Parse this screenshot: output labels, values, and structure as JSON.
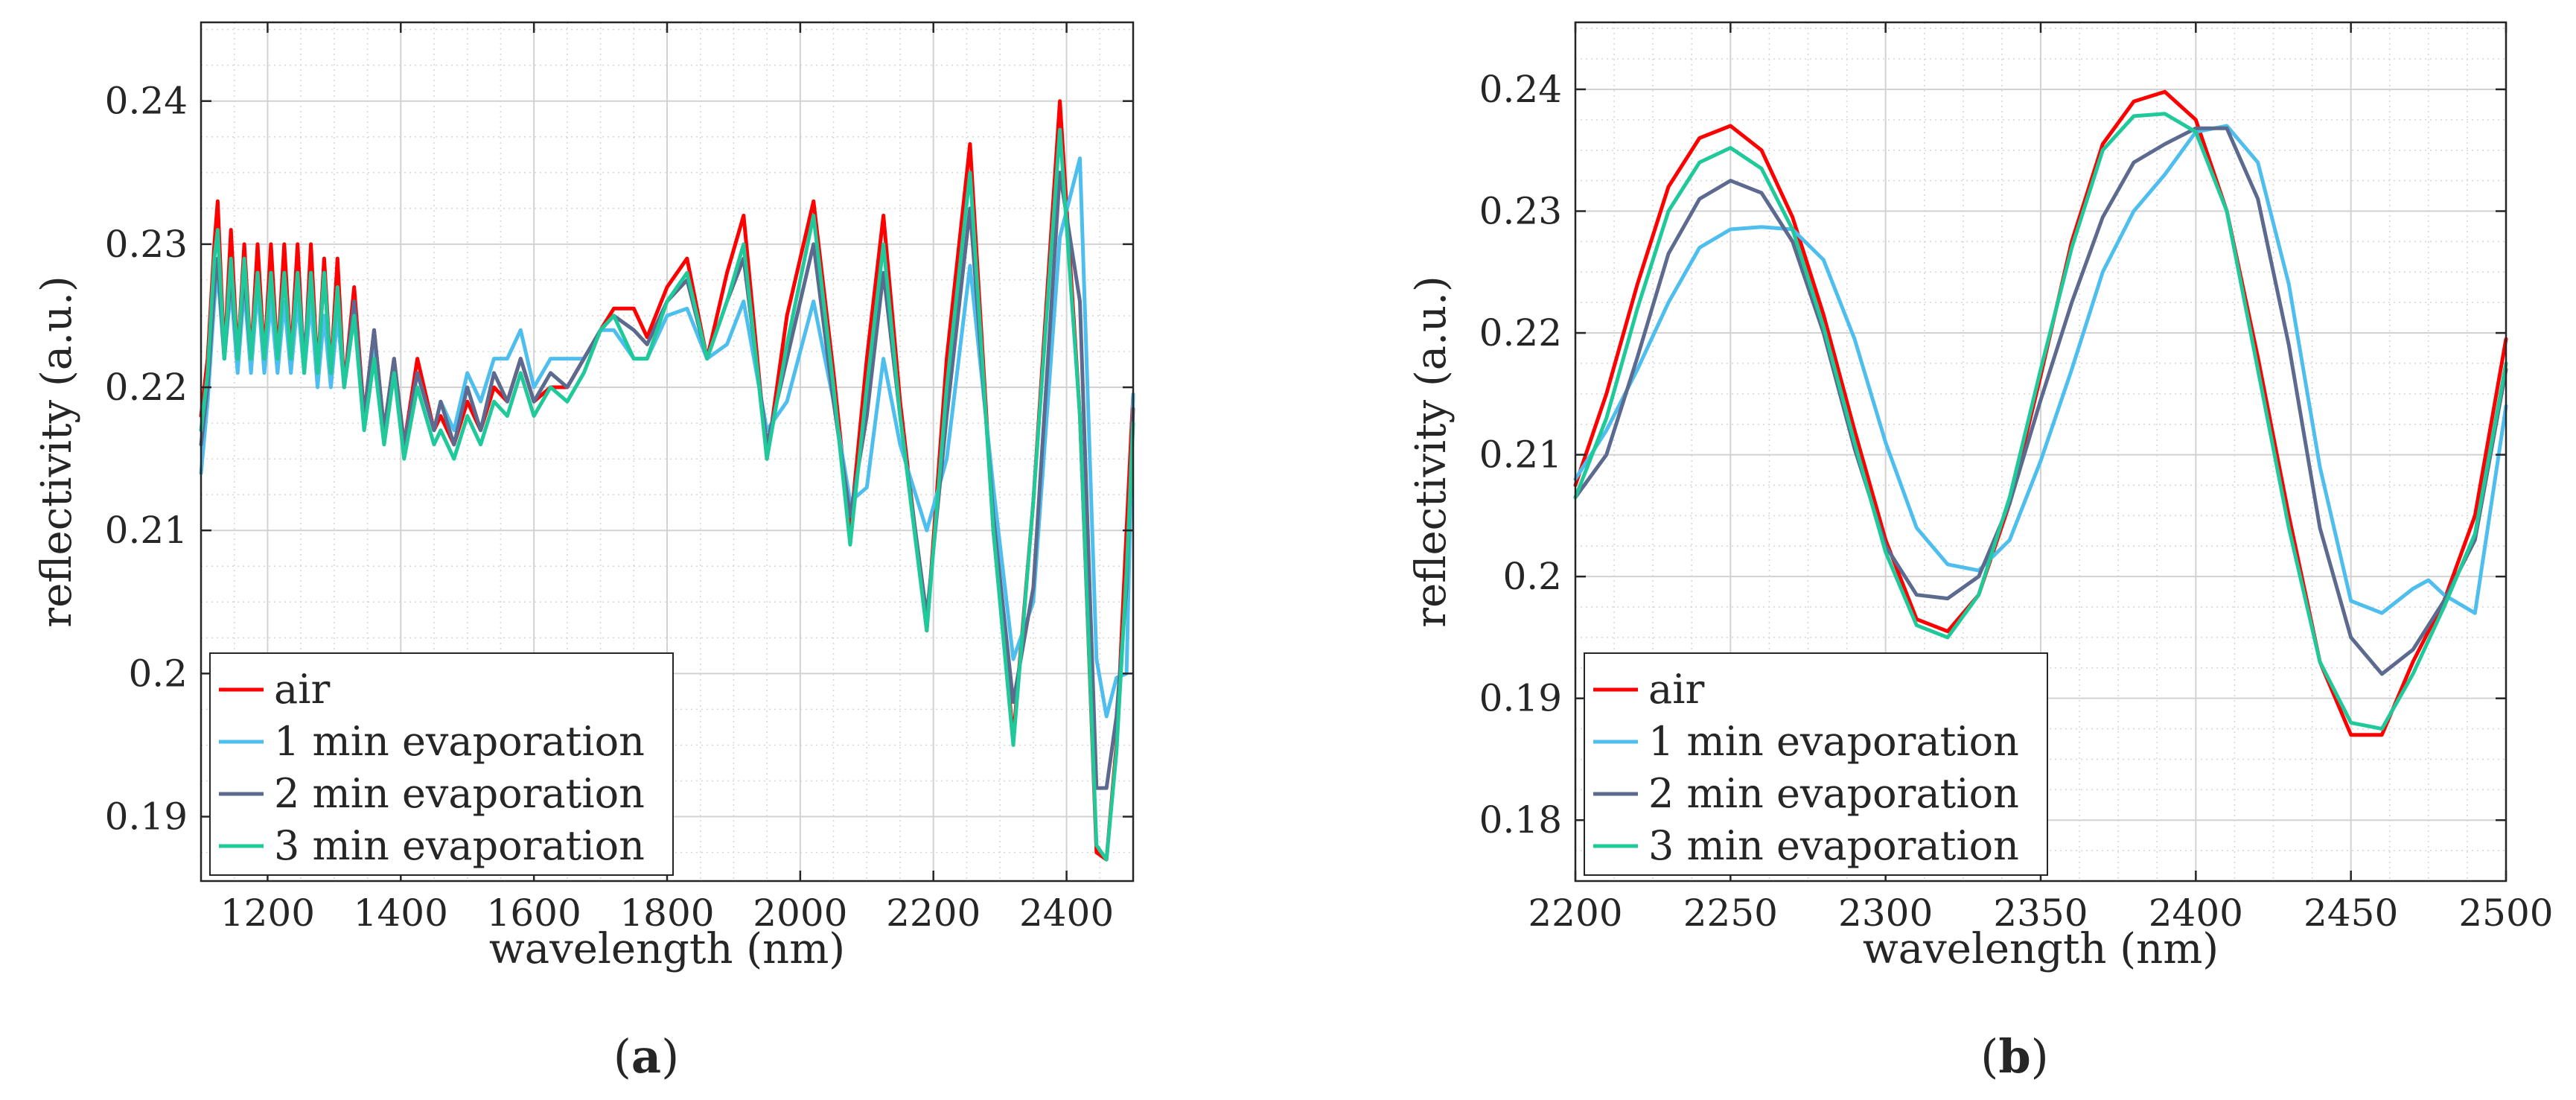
{
  "chart_data": [
    {
      "type": "line",
      "panel_label": "(a)",
      "panel_letter": "a",
      "xlabel": "wavelength (nm)",
      "ylabel": "reflectivity (a.u.)",
      "xlim": [
        1100,
        2500
      ],
      "ylim": [
        0.1855,
        0.2455
      ],
      "xticks": [
        1200,
        1400,
        1600,
        1800,
        2000,
        2200,
        2400
      ],
      "yticks": [
        0.19,
        0.2,
        0.21,
        0.22,
        0.23,
        0.24
      ],
      "ytick_labels": [
        "0.19",
        "0.2",
        "0.21",
        "0.22",
        "0.23",
        "0.24"
      ],
      "grid": true,
      "legend_position": "bottom-left",
      "series": [
        {
          "name": "air",
          "color": "#ff0000",
          "x": [
            1100,
            1110,
            1120,
            1125,
            1135,
            1145,
            1155,
            1165,
            1175,
            1185,
            1195,
            1205,
            1215,
            1225,
            1235,
            1245,
            1255,
            1265,
            1275,
            1285,
            1295,
            1305,
            1315,
            1330,
            1345,
            1360,
            1375,
            1390,
            1405,
            1425,
            1450,
            1460,
            1480,
            1500,
            1520,
            1540,
            1560,
            1580,
            1600,
            1625,
            1650,
            1675,
            1700,
            1720,
            1750,
            1770,
            1800,
            1830,
            1860,
            1890,
            1915,
            1950,
            1980,
            2020,
            2050,
            2075,
            2100,
            2125,
            2150,
            2190,
            2220,
            2255,
            2290,
            2320,
            2350,
            2390,
            2420,
            2445,
            2460,
            2475,
            2490,
            2500
          ],
          "y": [
            0.218,
            0.222,
            0.23,
            0.233,
            0.222,
            0.231,
            0.222,
            0.23,
            0.222,
            0.23,
            0.222,
            0.23,
            0.222,
            0.23,
            0.222,
            0.23,
            0.221,
            0.23,
            0.221,
            0.229,
            0.221,
            0.229,
            0.22,
            0.227,
            0.218,
            0.224,
            0.217,
            0.222,
            0.216,
            0.222,
            0.217,
            0.218,
            0.216,
            0.219,
            0.217,
            0.22,
            0.219,
            0.222,
            0.219,
            0.22,
            0.22,
            0.222,
            0.224,
            0.2255,
            0.2255,
            0.2235,
            0.227,
            0.229,
            0.222,
            0.228,
            0.232,
            0.215,
            0.225,
            0.233,
            0.221,
            0.21,
            0.222,
            0.232,
            0.219,
            0.203,
            0.222,
            0.237,
            0.21,
            0.1955,
            0.212,
            0.24,
            0.218,
            0.1875,
            0.187,
            0.195,
            0.21,
            0.2195
          ]
        },
        {
          "name": "1 min evaporation",
          "color": "#4dbeee",
          "x": [
            1100,
            1110,
            1120,
            1125,
            1135,
            1145,
            1155,
            1165,
            1175,
            1185,
            1195,
            1205,
            1215,
            1225,
            1235,
            1245,
            1255,
            1265,
            1275,
            1285,
            1295,
            1305,
            1315,
            1330,
            1345,
            1360,
            1375,
            1390,
            1405,
            1425,
            1450,
            1460,
            1480,
            1500,
            1520,
            1540,
            1560,
            1580,
            1600,
            1625,
            1650,
            1675,
            1700,
            1720,
            1750,
            1770,
            1800,
            1830,
            1860,
            1890,
            1915,
            1950,
            1980,
            2020,
            2050,
            2075,
            2100,
            2125,
            2150,
            2190,
            2220,
            2255,
            2290,
            2320,
            2350,
            2390,
            2420,
            2445,
            2460,
            2475,
            2490,
            2500
          ],
          "y": [
            0.214,
            0.219,
            0.226,
            0.228,
            0.222,
            0.227,
            0.221,
            0.227,
            0.221,
            0.227,
            0.221,
            0.226,
            0.221,
            0.226,
            0.221,
            0.226,
            0.221,
            0.226,
            0.22,
            0.225,
            0.22,
            0.225,
            0.22,
            0.225,
            0.218,
            0.223,
            0.217,
            0.221,
            0.216,
            0.221,
            0.217,
            0.219,
            0.217,
            0.221,
            0.219,
            0.222,
            0.222,
            0.224,
            0.22,
            0.222,
            0.222,
            0.222,
            0.224,
            0.224,
            0.222,
            0.222,
            0.225,
            0.2255,
            0.222,
            0.223,
            0.226,
            0.217,
            0.219,
            0.226,
            0.219,
            0.212,
            0.213,
            0.222,
            0.216,
            0.21,
            0.215,
            0.2285,
            0.213,
            0.201,
            0.205,
            0.2305,
            0.236,
            0.201,
            0.197,
            0.1997,
            0.2,
            0.2195
          ]
        },
        {
          "name": "2 min evaporation",
          "color": "#5b6a8e",
          "x": [
            1100,
            1110,
            1120,
            1125,
            1135,
            1145,
            1155,
            1165,
            1175,
            1185,
            1195,
            1205,
            1215,
            1225,
            1235,
            1245,
            1255,
            1265,
            1275,
            1285,
            1295,
            1305,
            1315,
            1330,
            1345,
            1360,
            1375,
            1390,
            1405,
            1425,
            1450,
            1460,
            1480,
            1500,
            1520,
            1540,
            1560,
            1580,
            1600,
            1625,
            1650,
            1675,
            1700,
            1720,
            1750,
            1770,
            1800,
            1830,
            1860,
            1890,
            1915,
            1950,
            1980,
            2020,
            2050,
            2075,
            2100,
            2125,
            2150,
            2190,
            2220,
            2255,
            2290,
            2320,
            2350,
            2390,
            2420,
            2445,
            2460,
            2475,
            2490,
            2500
          ],
          "y": [
            0.216,
            0.22,
            0.227,
            0.229,
            0.222,
            0.228,
            0.222,
            0.228,
            0.222,
            0.228,
            0.222,
            0.228,
            0.222,
            0.228,
            0.222,
            0.228,
            0.222,
            0.228,
            0.221,
            0.228,
            0.221,
            0.227,
            0.22,
            0.226,
            0.218,
            0.224,
            0.217,
            0.222,
            0.216,
            0.221,
            0.217,
            0.219,
            0.216,
            0.22,
            0.217,
            0.221,
            0.219,
            0.222,
            0.219,
            0.221,
            0.22,
            0.222,
            0.224,
            0.225,
            0.224,
            0.223,
            0.226,
            0.2275,
            0.222,
            0.226,
            0.229,
            0.216,
            0.222,
            0.23,
            0.219,
            0.211,
            0.218,
            0.228,
            0.218,
            0.204,
            0.218,
            0.2325,
            0.211,
            0.198,
            0.206,
            0.235,
            0.226,
            0.192,
            0.192,
            0.197,
            0.206,
            0.2185
          ]
        },
        {
          "name": "3 min evaporation",
          "color": "#20c99a",
          "x": [
            1100,
            1110,
            1120,
            1125,
            1135,
            1145,
            1155,
            1165,
            1175,
            1185,
            1195,
            1205,
            1215,
            1225,
            1235,
            1245,
            1255,
            1265,
            1275,
            1285,
            1295,
            1305,
            1315,
            1330,
            1345,
            1360,
            1375,
            1390,
            1405,
            1425,
            1450,
            1460,
            1480,
            1500,
            1520,
            1540,
            1560,
            1580,
            1600,
            1625,
            1650,
            1675,
            1700,
            1720,
            1750,
            1770,
            1800,
            1830,
            1860,
            1890,
            1915,
            1950,
            1980,
            2020,
            2050,
            2075,
            2100,
            2125,
            2150,
            2190,
            2220,
            2255,
            2290,
            2320,
            2350,
            2390,
            2420,
            2445,
            2460,
            2475,
            2490,
            2500
          ],
          "y": [
            0.217,
            0.221,
            0.229,
            0.231,
            0.222,
            0.229,
            0.222,
            0.229,
            0.222,
            0.228,
            0.222,
            0.228,
            0.222,
            0.228,
            0.222,
            0.228,
            0.221,
            0.228,
            0.221,
            0.228,
            0.221,
            0.227,
            0.22,
            0.225,
            0.217,
            0.222,
            0.216,
            0.221,
            0.215,
            0.22,
            0.216,
            0.217,
            0.215,
            0.218,
            0.216,
            0.219,
            0.218,
            0.221,
            0.218,
            0.22,
            0.219,
            0.221,
            0.224,
            0.225,
            0.222,
            0.222,
            0.226,
            0.228,
            0.222,
            0.226,
            0.23,
            0.215,
            0.223,
            0.232,
            0.22,
            0.209,
            0.22,
            0.23,
            0.218,
            0.203,
            0.22,
            0.235,
            0.21,
            0.195,
            0.212,
            0.238,
            0.218,
            0.188,
            0.187,
            0.1945,
            0.207,
            0.2175
          ]
        }
      ]
    },
    {
      "type": "line",
      "panel_label": "(b)",
      "panel_letter": "b",
      "xlabel": "wavelength (nm)",
      "ylabel": "reflectivity (a.u.)",
      "xlim": [
        2200,
        2500
      ],
      "ylim": [
        0.175,
        0.2455
      ],
      "xticks": [
        2200,
        2250,
        2300,
        2350,
        2400,
        2450,
        2500
      ],
      "yticks": [
        0.18,
        0.19,
        0.2,
        0.21,
        0.22,
        0.23,
        0.24
      ],
      "ytick_labels": [
        "0.18",
        "0.19",
        "0.2",
        "0.21",
        "0.22",
        "0.23",
        "0.24"
      ],
      "grid": true,
      "legend_position": "bottom-left",
      "series": [
        {
          "name": "air",
          "color": "#ff0000",
          "x": [
            2200,
            2210,
            2220,
            2230,
            2240,
            2250,
            2260,
            2270,
            2280,
            2290,
            2300,
            2310,
            2320,
            2330,
            2340,
            2350,
            2360,
            2370,
            2380,
            2390,
            2400,
            2410,
            2420,
            2430,
            2440,
            2450,
            2460,
            2470,
            2480,
            2490,
            2500
          ],
          "y": [
            0.2075,
            0.215,
            0.224,
            0.232,
            0.236,
            0.237,
            0.235,
            0.2295,
            0.2215,
            0.212,
            0.203,
            0.1965,
            0.1955,
            0.1985,
            0.206,
            0.2165,
            0.2275,
            0.2355,
            0.239,
            0.2398,
            0.2375,
            0.23,
            0.218,
            0.205,
            0.193,
            0.187,
            0.187,
            0.193,
            0.198,
            0.205,
            0.2195
          ]
        },
        {
          "name": "1 min evaporation",
          "color": "#4dbeee",
          "x": [
            2200,
            2210,
            2220,
            2230,
            2240,
            2250,
            2260,
            2270,
            2280,
            2290,
            2300,
            2310,
            2320,
            2330,
            2340,
            2350,
            2360,
            2370,
            2380,
            2390,
            2400,
            2410,
            2420,
            2430,
            2440,
            2450,
            2460,
            2470,
            2475,
            2480,
            2490,
            2500
          ],
          "y": [
            0.208,
            0.212,
            0.217,
            0.2225,
            0.227,
            0.2285,
            0.2287,
            0.2285,
            0.226,
            0.2195,
            0.211,
            0.204,
            0.201,
            0.2005,
            0.203,
            0.2095,
            0.217,
            0.225,
            0.23,
            0.233,
            0.2365,
            0.237,
            0.234,
            0.224,
            0.209,
            0.198,
            0.197,
            0.199,
            0.1997,
            0.1985,
            0.197,
            0.214
          ]
        },
        {
          "name": "2 min evaporation",
          "color": "#5b6a8e",
          "x": [
            2200,
            2210,
            2220,
            2230,
            2240,
            2250,
            2260,
            2270,
            2280,
            2290,
            2300,
            2310,
            2320,
            2330,
            2340,
            2350,
            2360,
            2370,
            2380,
            2390,
            2400,
            2410,
            2420,
            2430,
            2440,
            2450,
            2460,
            2470,
            2480,
            2490,
            2500
          ],
          "y": [
            0.2065,
            0.21,
            0.218,
            0.2265,
            0.231,
            0.2325,
            0.2315,
            0.2275,
            0.22,
            0.2105,
            0.2025,
            0.1985,
            0.1982,
            0.2,
            0.206,
            0.2145,
            0.2225,
            0.2295,
            0.234,
            0.2355,
            0.2368,
            0.2368,
            0.231,
            0.219,
            0.204,
            0.195,
            0.192,
            0.194,
            0.198,
            0.203,
            0.217
          ]
        },
        {
          "name": "3 min evaporation",
          "color": "#20c99a",
          "x": [
            2200,
            2210,
            2220,
            2230,
            2240,
            2250,
            2260,
            2270,
            2280,
            2290,
            2300,
            2310,
            2320,
            2330,
            2340,
            2350,
            2360,
            2370,
            2380,
            2390,
            2400,
            2410,
            2420,
            2430,
            2440,
            2450,
            2460,
            2470,
            2480,
            2490,
            2500
          ],
          "y": [
            0.2065,
            0.213,
            0.222,
            0.23,
            0.234,
            0.2352,
            0.2335,
            0.2285,
            0.2205,
            0.211,
            0.202,
            0.196,
            0.195,
            0.1985,
            0.2065,
            0.217,
            0.227,
            0.235,
            0.2378,
            0.238,
            0.2365,
            0.23,
            0.217,
            0.204,
            0.193,
            0.188,
            0.1875,
            0.192,
            0.1975,
            0.2035,
            0.2175
          ]
        }
      ]
    }
  ]
}
